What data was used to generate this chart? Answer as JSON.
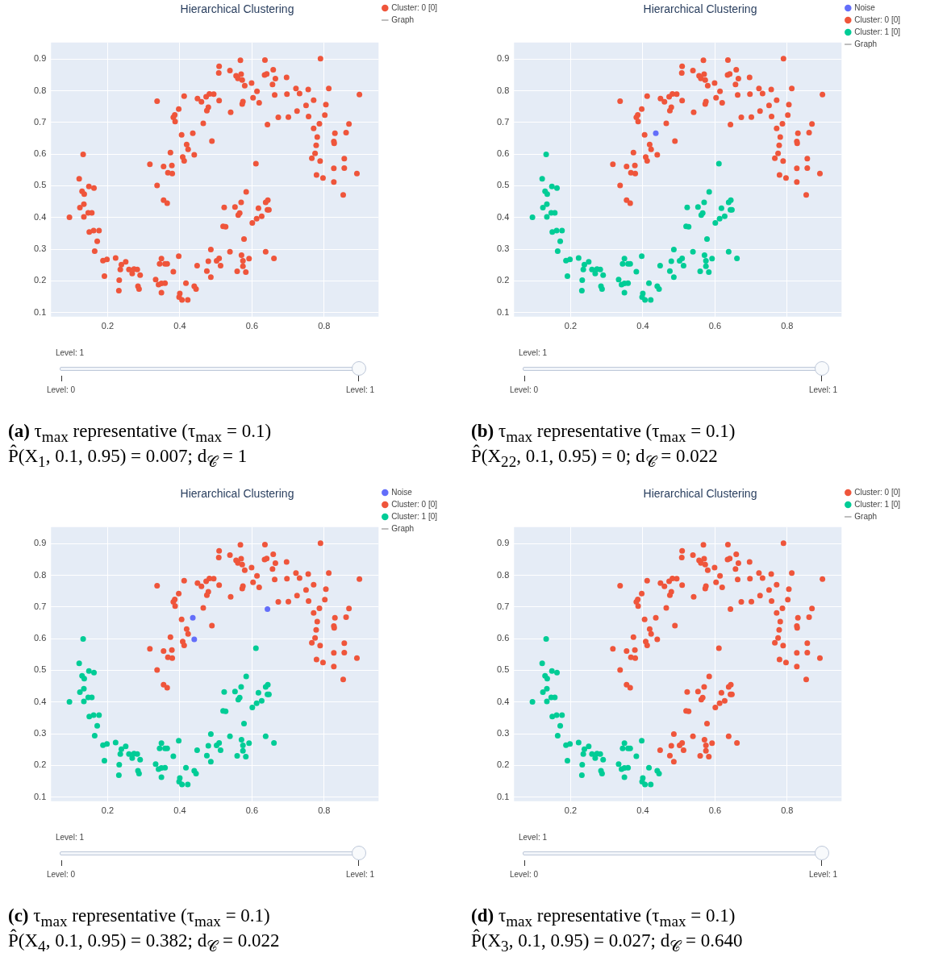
{
  "chart_data": [
    {
      "type": "scatter",
      "title": "Hierarchical Clustering",
      "xlim": [
        0.043,
        0.951
      ],
      "ylim": [
        0.087,
        0.952
      ],
      "xticks": [
        0.2,
        0.4,
        0.6,
        0.8
      ],
      "yticks": [
        0.1,
        0.2,
        0.3,
        0.4,
        0.5,
        0.6,
        0.7,
        0.8,
        0.9
      ],
      "grid": true,
      "legend": "top right",
      "marker": "circle",
      "annotations": [
        "Level: 1",
        "Level: 0",
        "Level: 1",
        "(a) τ$_{max}$ representative (τ$_{max}$ = 0.1)",
        "P̂(X$_{1}$, 0.1, 0.95) = 0.007; d$_{𝒞}$ = 1"
      ],
      "series": [
        {
          "name": "Cluster: 0 [0]",
          "color": "#ef553b",
          "x": [
            0.337,
            0.317,
            0.337,
            0.355,
            0.367,
            0.379,
            0.378,
            0.374,
            0.355,
            0.365,
            0.382,
            0.386,
            0.387,
            0.397,
            0.405,
            0.408,
            0.412,
            0.419,
            0.423,
            0.412,
            0.449,
            0.46,
            0.465,
            0.473,
            0.482,
            0.479,
            0.475,
            0.489,
            0.494,
            0.509,
            0.509,
            0.508,
            0.539,
            0.541,
            0.556,
            0.561,
            0.568,
            0.57,
            0.573,
            0.58,
            0.575,
            0.573,
            0.599,
            0.603,
            0.614,
            0.62,
            0.636,
            0.635,
            0.641,
            0.659,
            0.657,
            0.665,
            0.663,
            0.673,
            0.696,
            0.697,
            0.701,
            0.722,
            0.725,
            0.732,
            0.75,
            0.756,
            0.757,
            0.771,
            0.771,
            0.775,
            0.778,
            0.781,
            0.766,
            0.779,
            0.787,
            0.79,
            0.789,
            0.797,
            0.802,
            0.805,
            0.813,
            0.827,
            0.828,
            0.83,
            0.827,
            0.827,
            0.856,
            0.856,
            0.853,
            0.861,
            0.869,
            0.891,
            0.898,
            0.436,
            0.44,
            0.643,
            0.094,
            0.121,
            0.132,
            0.129,
            0.135,
            0.123,
            0.134,
            0.134,
            0.148,
            0.162,
            0.146,
            0.156,
            0.149,
            0.161,
            0.176,
            0.171,
            0.164,
            0.187,
            0.198,
            0.191,
            0.222,
            0.238,
            0.235,
            0.25,
            0.232,
            0.231,
            0.259,
            0.268,
            0.273,
            0.282,
            0.29,
            0.284,
            0.287,
            0.333,
            0.341,
            0.349,
            0.359,
            0.349,
            0.344,
            0.349,
            0.359,
            0.365,
            0.382,
            0.397,
            0.4,
            0.398,
            0.406,
            0.422,
            0.417,
            0.44,
            0.445,
            0.448,
            0.475,
            0.479,
            0.486,
            0.486,
            0.502,
            0.509,
            0.513,
            0.539,
            0.559,
            0.571,
            0.575,
            0.575,
            0.583,
            0.592,
            0.578,
            0.523,
            0.52,
            0.527,
            0.553,
            0.562,
            0.566,
            0.57,
            0.584,
            0.601,
            0.613,
            0.618,
            0.627,
            0.638,
            0.644,
            0.643,
            0.647,
            0.611,
            0.638,
            0.661
          ],
          "values": [
            0.767,
            0.568,
            0.501,
            0.561,
            0.541,
            0.539,
            0.564,
            0.605,
            0.455,
            0.445,
            0.716,
            0.724,
            0.703,
            0.742,
            0.661,
            0.591,
            0.579,
            0.63,
            0.615,
            0.783,
            0.775,
            0.765,
            0.697,
            0.781,
            0.79,
            0.748,
            0.737,
            0.641,
            0.789,
            0.769,
            0.877,
            0.856,
            0.864,
            0.732,
            0.847,
            0.839,
            0.896,
            0.852,
            0.834,
            0.816,
            0.766,
            0.758,
            0.824,
            0.778,
            0.798,
            0.762,
            0.897,
            0.85,
            0.853,
            0.866,
            0.82,
            0.838,
            0.787,
            0.716,
            0.842,
            0.789,
            0.717,
            0.807,
            0.736,
            0.791,
            0.754,
            0.804,
            0.719,
            0.77,
            0.681,
            0.602,
            0.628,
            0.654,
            0.587,
            0.534,
            0.696,
            0.901,
            0.578,
            0.525,
            0.723,
            0.756,
            0.807,
            0.64,
            0.634,
            0.666,
            0.555,
            0.512,
            0.586,
            0.556,
            0.471,
            0.668,
            0.695,
            0.539,
            0.788,
            0.666,
            0.598,
            0.693,
            0.401,
            0.522,
            0.599,
            0.483,
            0.474,
            0.431,
            0.442,
            0.402,
            0.498,
            0.493,
            0.415,
            0.415,
            0.354,
            0.359,
            0.359,
            0.325,
            0.294,
            0.264,
            0.268,
            0.215,
            0.272,
            0.251,
            0.236,
            0.26,
            0.202,
            0.169,
            0.236,
            0.223,
            0.237,
            0.236,
            0.218,
            0.183,
            0.174,
            0.204,
            0.188,
            0.192,
            0.193,
            0.163,
            0.254,
            0.27,
            0.254,
            0.254,
            0.229,
            0.278,
            0.16,
            0.149,
            0.14,
            0.14,
            0.193,
            0.183,
            0.174,
            0.248,
            0.231,
            0.262,
            0.212,
            0.299,
            0.263,
            0.271,
            0.248,
            0.292,
            0.23,
            0.281,
            0.263,
            0.246,
            0.228,
            0.27,
            0.332,
            0.432,
            0.372,
            0.371,
            0.433,
            0.408,
            0.414,
            0.448,
            0.481,
            0.383,
            0.396,
            0.429,
            0.404,
            0.448,
            0.455,
            0.424,
            0.424,
            0.57,
            0.292,
            0.271
          ]
        },
        {
          "name": "Graph",
          "type": "line",
          "color": "#a9a9a9"
        }
      ]
    },
    {
      "type": "scatter",
      "title": "Hierarchical Clustering",
      "xlim": [
        0.043,
        0.951
      ],
      "ylim": [
        0.087,
        0.952
      ],
      "xticks": [
        0.2,
        0.4,
        0.6,
        0.8
      ],
      "yticks": [
        0.1,
        0.2,
        0.3,
        0.4,
        0.5,
        0.6,
        0.7,
        0.8,
        0.9
      ],
      "grid": true,
      "legend": "top right",
      "marker": "circle",
      "annotations": [
        "Level: 1",
        "Level: 0",
        "Level: 1",
        "(b) τ$_{max}$ representative (τ$_{max}$ = 0.1)",
        "P̂(X$_{22}$, 0.1, 0.95) = 0; d$_{𝒞}$ = 0.022"
      ],
      "series": [
        {
          "name": "Noise",
          "color": "#636efa",
          "x": [
            0.436
          ],
          "values": [
            0.666
          ]
        },
        {
          "name": "Cluster: 0 [0]",
          "color": "#ef553b",
          "x": [
            0.337,
            0.317,
            0.337,
            0.355,
            0.367,
            0.379,
            0.378,
            0.374,
            0.355,
            0.365,
            0.382,
            0.386,
            0.387,
            0.397,
            0.405,
            0.408,
            0.412,
            0.419,
            0.423,
            0.412,
            0.449,
            0.46,
            0.465,
            0.473,
            0.482,
            0.479,
            0.475,
            0.489,
            0.494,
            0.509,
            0.509,
            0.508,
            0.539,
            0.541,
            0.556,
            0.561,
            0.568,
            0.57,
            0.573,
            0.58,
            0.575,
            0.573,
            0.599,
            0.603,
            0.614,
            0.62,
            0.636,
            0.635,
            0.641,
            0.659,
            0.657,
            0.665,
            0.663,
            0.673,
            0.696,
            0.697,
            0.701,
            0.722,
            0.725,
            0.732,
            0.75,
            0.756,
            0.757,
            0.771,
            0.771,
            0.775,
            0.778,
            0.781,
            0.766,
            0.779,
            0.787,
            0.79,
            0.789,
            0.797,
            0.802,
            0.805,
            0.813,
            0.827,
            0.828,
            0.83,
            0.827,
            0.827,
            0.856,
            0.856,
            0.853,
            0.861,
            0.869,
            0.891,
            0.898,
            0.44,
            0.643
          ],
          "values": [
            0.767,
            0.568,
            0.501,
            0.561,
            0.541,
            0.539,
            0.564,
            0.605,
            0.455,
            0.445,
            0.716,
            0.724,
            0.703,
            0.742,
            0.661,
            0.591,
            0.579,
            0.63,
            0.615,
            0.783,
            0.775,
            0.765,
            0.697,
            0.781,
            0.79,
            0.748,
            0.737,
            0.641,
            0.789,
            0.769,
            0.877,
            0.856,
            0.864,
            0.732,
            0.847,
            0.839,
            0.896,
            0.852,
            0.834,
            0.816,
            0.766,
            0.758,
            0.824,
            0.778,
            0.798,
            0.762,
            0.897,
            0.85,
            0.853,
            0.866,
            0.82,
            0.838,
            0.787,
            0.716,
            0.842,
            0.789,
            0.717,
            0.807,
            0.736,
            0.791,
            0.754,
            0.804,
            0.719,
            0.77,
            0.681,
            0.602,
            0.628,
            0.654,
            0.587,
            0.534,
            0.696,
            0.901,
            0.578,
            0.525,
            0.723,
            0.756,
            0.807,
            0.64,
            0.634,
            0.666,
            0.555,
            0.512,
            0.586,
            0.556,
            0.471,
            0.668,
            0.695,
            0.539,
            0.788,
            0.598,
            0.693
          ]
        },
        {
          "name": "Cluster: 1 [0]",
          "color": "#00cc96",
          "x": [
            0.094,
            0.121,
            0.132,
            0.129,
            0.135,
            0.123,
            0.134,
            0.134,
            0.148,
            0.162,
            0.146,
            0.156,
            0.149,
            0.161,
            0.176,
            0.171,
            0.164,
            0.187,
            0.198,
            0.191,
            0.222,
            0.238,
            0.235,
            0.25,
            0.232,
            0.231,
            0.259,
            0.268,
            0.273,
            0.282,
            0.29,
            0.284,
            0.287,
            0.333,
            0.341,
            0.349,
            0.359,
            0.349,
            0.344,
            0.349,
            0.359,
            0.365,
            0.382,
            0.397,
            0.4,
            0.398,
            0.406,
            0.422,
            0.417,
            0.44,
            0.445,
            0.448,
            0.475,
            0.479,
            0.486,
            0.486,
            0.502,
            0.509,
            0.513,
            0.539,
            0.559,
            0.571,
            0.575,
            0.575,
            0.583,
            0.592,
            0.578,
            0.523,
            0.52,
            0.527,
            0.553,
            0.562,
            0.566,
            0.57,
            0.584,
            0.601,
            0.613,
            0.618,
            0.627,
            0.638,
            0.644,
            0.643,
            0.647,
            0.611,
            0.638,
            0.661
          ],
          "values": [
            0.401,
            0.522,
            0.599,
            0.483,
            0.474,
            0.431,
            0.442,
            0.402,
            0.498,
            0.493,
            0.415,
            0.415,
            0.354,
            0.359,
            0.359,
            0.325,
            0.294,
            0.264,
            0.268,
            0.215,
            0.272,
            0.251,
            0.236,
            0.26,
            0.202,
            0.169,
            0.236,
            0.223,
            0.237,
            0.236,
            0.218,
            0.183,
            0.174,
            0.204,
            0.188,
            0.192,
            0.193,
            0.163,
            0.254,
            0.27,
            0.254,
            0.254,
            0.229,
            0.278,
            0.16,
            0.149,
            0.14,
            0.14,
            0.193,
            0.183,
            0.174,
            0.248,
            0.231,
            0.262,
            0.212,
            0.299,
            0.263,
            0.271,
            0.248,
            0.292,
            0.23,
            0.281,
            0.263,
            0.246,
            0.228,
            0.27,
            0.332,
            0.432,
            0.372,
            0.371,
            0.433,
            0.408,
            0.414,
            0.448,
            0.481,
            0.383,
            0.396,
            0.429,
            0.404,
            0.448,
            0.455,
            0.424,
            0.424,
            0.57,
            0.292,
            0.271
          ]
        },
        {
          "name": "Graph",
          "type": "line",
          "color": "#a9a9a9"
        }
      ]
    },
    {
      "type": "scatter",
      "title": "Hierarchical Clustering",
      "xlim": [
        0.043,
        0.951
      ],
      "ylim": [
        0.087,
        0.952
      ],
      "xticks": [
        0.2,
        0.4,
        0.6,
        0.8
      ],
      "yticks": [
        0.1,
        0.2,
        0.3,
        0.4,
        0.5,
        0.6,
        0.7,
        0.8,
        0.9
      ],
      "grid": true,
      "legend": "top right",
      "marker": "circle",
      "annotations": [
        "Level: 1",
        "Level: 0",
        "Level: 1",
        "(c) τ$_{max}$ representative (τ$_{max}$ = 0.1)",
        "P̂(X$_{4}$, 0.1, 0.95) = 0.382; d$_{𝒞}$ = 0.022"
      ],
      "series": [
        {
          "name": "Noise",
          "color": "#636efa",
          "x": [
            0.436,
            0.44,
            0.643
          ],
          "values": [
            0.666,
            0.598,
            0.693
          ]
        },
        {
          "name": "Cluster: 0 [0]",
          "color": "#ef553b",
          "x": [
            0.337,
            0.317,
            0.337,
            0.355,
            0.367,
            0.379,
            0.378,
            0.374,
            0.355,
            0.365,
            0.382,
            0.386,
            0.387,
            0.397,
            0.405,
            0.408,
            0.412,
            0.419,
            0.423,
            0.412,
            0.449,
            0.46,
            0.465,
            0.473,
            0.482,
            0.479,
            0.475,
            0.489,
            0.494,
            0.509,
            0.509,
            0.508,
            0.539,
            0.541,
            0.556,
            0.561,
            0.568,
            0.57,
            0.573,
            0.58,
            0.575,
            0.573,
            0.599,
            0.603,
            0.614,
            0.62,
            0.636,
            0.635,
            0.641,
            0.659,
            0.657,
            0.665,
            0.663,
            0.673,
            0.696,
            0.697,
            0.701,
            0.722,
            0.725,
            0.732,
            0.75,
            0.756,
            0.757,
            0.771,
            0.771,
            0.775,
            0.778,
            0.781,
            0.766,
            0.779,
            0.787,
            0.79,
            0.789,
            0.797,
            0.802,
            0.805,
            0.813,
            0.827,
            0.828,
            0.83,
            0.827,
            0.827,
            0.856,
            0.856,
            0.853,
            0.861,
            0.869,
            0.891,
            0.898
          ],
          "values": [
            0.767,
            0.568,
            0.501,
            0.561,
            0.541,
            0.539,
            0.564,
            0.605,
            0.455,
            0.445,
            0.716,
            0.724,
            0.703,
            0.742,
            0.661,
            0.591,
            0.579,
            0.63,
            0.615,
            0.783,
            0.775,
            0.765,
            0.697,
            0.781,
            0.79,
            0.748,
            0.737,
            0.641,
            0.789,
            0.769,
            0.877,
            0.856,
            0.864,
            0.732,
            0.847,
            0.839,
            0.896,
            0.852,
            0.834,
            0.816,
            0.766,
            0.758,
            0.824,
            0.778,
            0.798,
            0.762,
            0.897,
            0.85,
            0.853,
            0.866,
            0.82,
            0.838,
            0.787,
            0.716,
            0.842,
            0.789,
            0.717,
            0.807,
            0.736,
            0.791,
            0.754,
            0.804,
            0.719,
            0.77,
            0.681,
            0.602,
            0.628,
            0.654,
            0.587,
            0.534,
            0.696,
            0.901,
            0.578,
            0.525,
            0.723,
            0.756,
            0.807,
            0.64,
            0.634,
            0.666,
            0.555,
            0.512,
            0.586,
            0.556,
            0.471,
            0.668,
            0.695,
            0.539,
            0.788
          ]
        },
        {
          "name": "Cluster: 1 [0]",
          "color": "#00cc96",
          "x": [
            0.094,
            0.121,
            0.132,
            0.129,
            0.135,
            0.123,
            0.134,
            0.134,
            0.148,
            0.162,
            0.146,
            0.156,
            0.149,
            0.161,
            0.176,
            0.171,
            0.164,
            0.187,
            0.198,
            0.191,
            0.222,
            0.238,
            0.235,
            0.25,
            0.232,
            0.231,
            0.259,
            0.268,
            0.273,
            0.282,
            0.29,
            0.284,
            0.287,
            0.333,
            0.341,
            0.349,
            0.359,
            0.349,
            0.344,
            0.349,
            0.359,
            0.365,
            0.382,
            0.397,
            0.4,
            0.398,
            0.406,
            0.422,
            0.417,
            0.44,
            0.445,
            0.448,
            0.475,
            0.479,
            0.486,
            0.486,
            0.502,
            0.509,
            0.513,
            0.539,
            0.559,
            0.571,
            0.575,
            0.575,
            0.583,
            0.592,
            0.578,
            0.523,
            0.52,
            0.527,
            0.553,
            0.562,
            0.566,
            0.57,
            0.584,
            0.601,
            0.613,
            0.618,
            0.627,
            0.638,
            0.644,
            0.643,
            0.647,
            0.611,
            0.638,
            0.661
          ],
          "values": [
            0.401,
            0.522,
            0.599,
            0.483,
            0.474,
            0.431,
            0.442,
            0.402,
            0.498,
            0.493,
            0.415,
            0.415,
            0.354,
            0.359,
            0.359,
            0.325,
            0.294,
            0.264,
            0.268,
            0.215,
            0.272,
            0.251,
            0.236,
            0.26,
            0.202,
            0.169,
            0.236,
            0.223,
            0.237,
            0.236,
            0.218,
            0.183,
            0.174,
            0.204,
            0.188,
            0.192,
            0.193,
            0.163,
            0.254,
            0.27,
            0.254,
            0.254,
            0.229,
            0.278,
            0.16,
            0.149,
            0.14,
            0.14,
            0.193,
            0.183,
            0.174,
            0.248,
            0.231,
            0.262,
            0.212,
            0.299,
            0.263,
            0.271,
            0.248,
            0.292,
            0.23,
            0.281,
            0.263,
            0.246,
            0.228,
            0.27,
            0.332,
            0.432,
            0.372,
            0.371,
            0.433,
            0.408,
            0.414,
            0.448,
            0.481,
            0.383,
            0.396,
            0.429,
            0.404,
            0.448,
            0.455,
            0.424,
            0.424,
            0.57,
            0.292,
            0.271
          ]
        },
        {
          "name": "Graph",
          "type": "line",
          "color": "#a9a9a9"
        }
      ]
    },
    {
      "type": "scatter",
      "title": "Hierarchical Clustering",
      "xlim": [
        0.043,
        0.951
      ],
      "ylim": [
        0.087,
        0.952
      ],
      "xticks": [
        0.2,
        0.4,
        0.6,
        0.8
      ],
      "yticks": [
        0.1,
        0.2,
        0.3,
        0.4,
        0.5,
        0.6,
        0.7,
        0.8,
        0.9
      ],
      "grid": true,
      "legend": "top right",
      "marker": "circle",
      "annotations": [
        "Level: 1",
        "Level: 0",
        "Level: 1",
        "(d) τ$_{max}$ representative (τ$_{max}$ = 0.1)",
        "P̂(X$_{3}$, 0.1, 0.95) = 0.027; d$_{𝒞}$ = 0.640"
      ],
      "series": [
        {
          "name": "Cluster: 0 [0]",
          "color": "#ef553b",
          "x": [
            0.337,
            0.317,
            0.337,
            0.355,
            0.367,
            0.379,
            0.378,
            0.374,
            0.355,
            0.365,
            0.382,
            0.386,
            0.387,
            0.397,
            0.405,
            0.408,
            0.412,
            0.419,
            0.423,
            0.412,
            0.449,
            0.46,
            0.465,
            0.473,
            0.482,
            0.479,
            0.475,
            0.489,
            0.494,
            0.509,
            0.509,
            0.508,
            0.539,
            0.541,
            0.556,
            0.561,
            0.568,
            0.57,
            0.573,
            0.58,
            0.575,
            0.573,
            0.599,
            0.603,
            0.614,
            0.62,
            0.636,
            0.635,
            0.641,
            0.659,
            0.657,
            0.665,
            0.663,
            0.673,
            0.696,
            0.697,
            0.701,
            0.722,
            0.725,
            0.732,
            0.75,
            0.756,
            0.757,
            0.771,
            0.771,
            0.775,
            0.778,
            0.781,
            0.766,
            0.779,
            0.787,
            0.79,
            0.789,
            0.797,
            0.802,
            0.805,
            0.813,
            0.827,
            0.828,
            0.83,
            0.827,
            0.827,
            0.856,
            0.856,
            0.853,
            0.861,
            0.869,
            0.891,
            0.898,
            0.436,
            0.44,
            0.643,
            0.448,
            0.475,
            0.479,
            0.486,
            0.486,
            0.502,
            0.509,
            0.513,
            0.539,
            0.559,
            0.571,
            0.575,
            0.575,
            0.583,
            0.592,
            0.578,
            0.523,
            0.52,
            0.527,
            0.553,
            0.562,
            0.566,
            0.57,
            0.584,
            0.601,
            0.613,
            0.618,
            0.627,
            0.638,
            0.644,
            0.643,
            0.647,
            0.611,
            0.638,
            0.661
          ],
          "values": [
            0.767,
            0.568,
            0.501,
            0.561,
            0.541,
            0.539,
            0.564,
            0.605,
            0.455,
            0.445,
            0.716,
            0.724,
            0.703,
            0.742,
            0.661,
            0.591,
            0.579,
            0.63,
            0.615,
            0.783,
            0.775,
            0.765,
            0.697,
            0.781,
            0.79,
            0.748,
            0.737,
            0.641,
            0.789,
            0.769,
            0.877,
            0.856,
            0.864,
            0.732,
            0.847,
            0.839,
            0.896,
            0.852,
            0.834,
            0.816,
            0.766,
            0.758,
            0.824,
            0.778,
            0.798,
            0.762,
            0.897,
            0.85,
            0.853,
            0.866,
            0.82,
            0.838,
            0.787,
            0.716,
            0.842,
            0.789,
            0.717,
            0.807,
            0.736,
            0.791,
            0.754,
            0.804,
            0.719,
            0.77,
            0.681,
            0.602,
            0.628,
            0.654,
            0.587,
            0.534,
            0.696,
            0.901,
            0.578,
            0.525,
            0.723,
            0.756,
            0.807,
            0.64,
            0.634,
            0.666,
            0.555,
            0.512,
            0.586,
            0.556,
            0.471,
            0.668,
            0.695,
            0.539,
            0.788,
            0.666,
            0.598,
            0.693,
            0.248,
            0.231,
            0.262,
            0.212,
            0.299,
            0.263,
            0.271,
            0.248,
            0.292,
            0.23,
            0.281,
            0.263,
            0.246,
            0.228,
            0.27,
            0.332,
            0.432,
            0.372,
            0.371,
            0.433,
            0.408,
            0.414,
            0.448,
            0.481,
            0.383,
            0.396,
            0.429,
            0.404,
            0.448,
            0.455,
            0.424,
            0.424,
            0.57,
            0.292,
            0.271
          ]
        },
        {
          "name": "Cluster: 1 [0]",
          "color": "#00cc96",
          "x": [
            0.094,
            0.121,
            0.132,
            0.129,
            0.135,
            0.123,
            0.134,
            0.134,
            0.148,
            0.162,
            0.146,
            0.156,
            0.149,
            0.161,
            0.176,
            0.171,
            0.164,
            0.187,
            0.198,
            0.191,
            0.222,
            0.238,
            0.235,
            0.25,
            0.232,
            0.231,
            0.259,
            0.268,
            0.273,
            0.282,
            0.29,
            0.284,
            0.287,
            0.333,
            0.341,
            0.349,
            0.359,
            0.349,
            0.344,
            0.349,
            0.359,
            0.365,
            0.382,
            0.397,
            0.4,
            0.398,
            0.406,
            0.422,
            0.417,
            0.44,
            0.445
          ],
          "values": [
            0.401,
            0.522,
            0.599,
            0.483,
            0.474,
            0.431,
            0.442,
            0.402,
            0.498,
            0.493,
            0.415,
            0.415,
            0.354,
            0.359,
            0.359,
            0.325,
            0.294,
            0.264,
            0.268,
            0.215,
            0.272,
            0.251,
            0.236,
            0.26,
            0.202,
            0.169,
            0.236,
            0.223,
            0.237,
            0.236,
            0.218,
            0.183,
            0.174,
            0.204,
            0.188,
            0.192,
            0.193,
            0.163,
            0.254,
            0.27,
            0.254,
            0.254,
            0.229,
            0.278,
            0.16,
            0.149,
            0.14,
            0.14,
            0.193,
            0.183,
            0.174
          ]
        },
        {
          "name": "Graph",
          "type": "line",
          "color": "#a9a9a9"
        }
      ]
    }
  ]
}
